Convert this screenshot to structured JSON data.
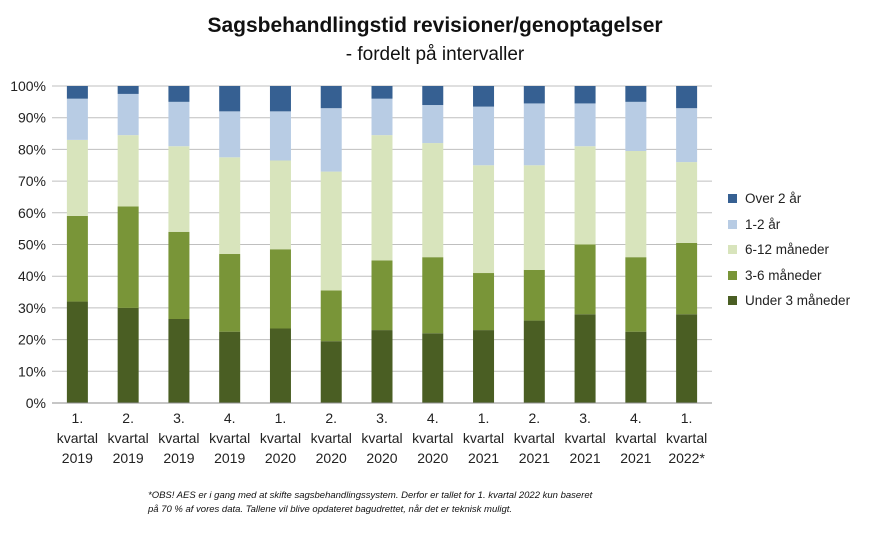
{
  "chart_data": {
    "type": "bar",
    "stacked": true,
    "title": "Sagsbehandlingstid revisioner/genoptagelser",
    "subtitle": "- fordelt på intervaller",
    "categories": [
      [
        "1.",
        "kvartal",
        "2019"
      ],
      [
        "2.",
        "kvartal",
        "2019"
      ],
      [
        "3.",
        "kvartal",
        "2019"
      ],
      [
        "4.",
        "kvartal",
        "2019"
      ],
      [
        "1.",
        "kvartal",
        "2020"
      ],
      [
        "2.",
        "kvartal",
        "2020"
      ],
      [
        "3.",
        "kvartal",
        "2020"
      ],
      [
        "4.",
        "kvartal",
        "2020"
      ],
      [
        "1.",
        "kvartal",
        "2021"
      ],
      [
        "2.",
        "kvartal",
        "2021"
      ],
      [
        "3.",
        "kvartal",
        "2021"
      ],
      [
        "4.",
        "kvartal",
        "2021"
      ],
      [
        "1.",
        "kvartal",
        "2022*"
      ]
    ],
    "yticks": [
      "0%",
      "10%",
      "20%",
      "30%",
      "40%",
      "50%",
      "60%",
      "70%",
      "80%",
      "90%",
      "100%"
    ],
    "ylim": [
      0,
      100
    ],
    "grid": true,
    "legend_position": "right",
    "series": [
      {
        "name": "Under 3 måneder",
        "color": "#4a5e23",
        "values": [
          32,
          30,
          26.5,
          22.5,
          23.5,
          19.5,
          23,
          22,
          23,
          26,
          28,
          22.5,
          28
        ]
      },
      {
        "name": "3-6 måneder",
        "color": "#799538",
        "values": [
          27,
          32,
          27.5,
          24.5,
          25,
          16,
          22,
          24,
          18,
          16,
          22,
          23.5,
          22.5
        ]
      },
      {
        "name": "6-12 måneder",
        "color": "#d8e4bc",
        "values": [
          24,
          22.5,
          27,
          30.5,
          28,
          37.5,
          39.5,
          36,
          34,
          33,
          31,
          33.5,
          25.5
        ]
      },
      {
        "name": "1-2 år",
        "color": "#b8cce4",
        "values": [
          13,
          13,
          14,
          14.5,
          15.5,
          20,
          11.5,
          12,
          18.5,
          19.5,
          13.5,
          15.5,
          17
        ]
      },
      {
        "name": "Over 2 år",
        "color": "#366092",
        "values": [
          4,
          2.5,
          5,
          8,
          8,
          7,
          4,
          6,
          6.5,
          5.5,
          5.5,
          5,
          7
        ]
      }
    ],
    "footnote": [
      "*OBS! AES er i gang med at skifte sagsbehandlingssystem. Derfor er tallet for 1. kvartal 2022 kun baseret",
      "på 70 % af vores data. Tallene vil blive opdateret bagudrettet, når det er teknisk muligt."
    ]
  }
}
